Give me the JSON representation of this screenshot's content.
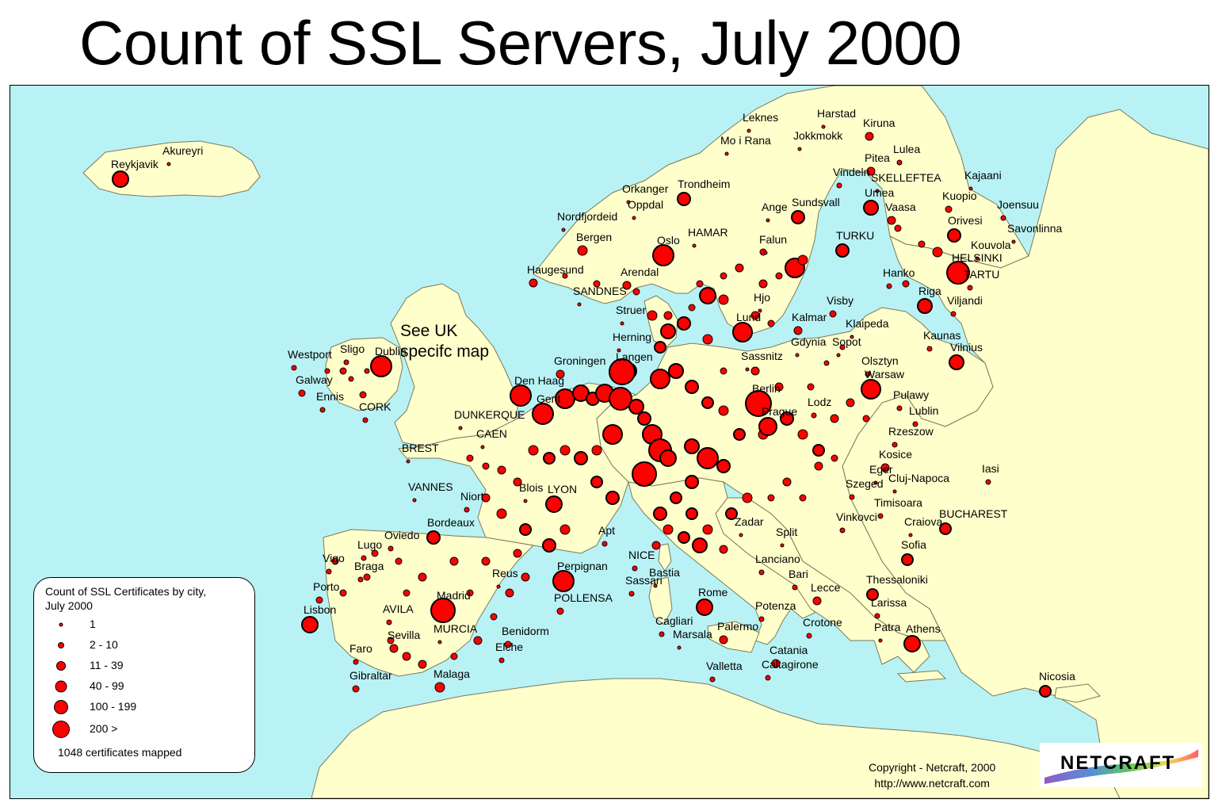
{
  "title": "Count of SSL Servers, July 2000",
  "map_note": [
    "See UK",
    "specifc map"
  ],
  "legend": {
    "title_lines": [
      "Count of SSL Certificates by city,",
      "July 2000"
    ],
    "classes": [
      {
        "label": "1",
        "size": "tiny"
      },
      {
        "label": "2 - 10",
        "size": "small"
      },
      {
        "label": "11 - 39",
        "size": "medium-small"
      },
      {
        "label": "40 - 99",
        "size": "medium"
      },
      {
        "label": "100 - 199",
        "size": "large"
      },
      {
        "label": "200 >",
        "size": "largest"
      }
    ],
    "footer": "1048 certificates mapped"
  },
  "copyright": [
    "Copyright - Netcraft, 2000",
    "http://www.netcraft.com"
  ],
  "logo_text": "NETCRAFT",
  "colors": {
    "sea": "#b9f2f4",
    "land": "#ffffcc",
    "marker": "#ff0000"
  },
  "cities": [
    "Akureyri",
    "Reykjavik",
    "Leknes",
    "Harstad",
    "Kiruna",
    "Mo i Rana",
    "Jokkmokk",
    "Lulea",
    "Pitea",
    "Vindeln",
    "SKELLEFTEA",
    "Kajaani",
    "Orkanger",
    "Trondheim",
    "Umea",
    "Kuopio",
    "Joensuu",
    "Oppdal",
    "Ange",
    "Sundsvall",
    "Vaasa",
    "Nordfjordeid",
    "Orivesi",
    "Savonlinna",
    "HAMAR",
    "Bergen",
    "Oslo",
    "Falun",
    "TURKU",
    "Kouvola",
    "HELSINKI",
    "Haugesund",
    "Arendal",
    "Hanko",
    "TARTU",
    "SANDNES",
    "Hjo",
    "Visby",
    "Riga",
    "Viljandi",
    "Struer",
    "Lund",
    "Kalmar",
    "Klaipeda",
    "Herning",
    "Kaunas",
    "Vilnius",
    "Gdynia",
    "Sopot",
    "Westport",
    "Sligo",
    "Dublin",
    "Sassnitz",
    "Groningen",
    "Langen",
    "Olsztyn",
    "Galway",
    "Den Haag",
    "Warsaw",
    "Berlin",
    "Ennis",
    "Gent",
    "Pulawy",
    "CORK",
    "DUNKERQUE",
    "Lodz",
    "Lublin",
    "Prague",
    "CAEN",
    "Rzeszow",
    "BREST",
    "Kosice",
    "Iasi",
    "Eger",
    "VANNES",
    "Niort",
    "Blois",
    "LYON",
    "Szeged",
    "Cluj-Napoca",
    "Timisoara",
    "Vinkovci",
    "Craiova",
    "BUCHAREST",
    "Bordeaux",
    "Zadar",
    "Split",
    "Oviedo",
    "Apt",
    "Lugo",
    "Sofia",
    "Vigo",
    "NICE",
    "Braga",
    "Perpignan",
    "Lanciano",
    "Bastia",
    "Reus",
    "Bari",
    "Porto",
    "Sassari",
    "Thessaloniki",
    "Madrid",
    "Rome",
    "Lecce",
    "POLLENSA",
    "AVILA",
    "Larissa",
    "Lisbon",
    "Potenza",
    "Cagliari",
    "Crotone",
    "MURCIA",
    "Patra",
    "Athens",
    "Benidorm",
    "Marsala",
    "Palermo",
    "Sevilla",
    "Faro",
    "Elche",
    "Catania",
    "Gibraltar",
    "Malaga",
    "Valletta",
    "Caltagirone",
    "Nicosia"
  ]
}
